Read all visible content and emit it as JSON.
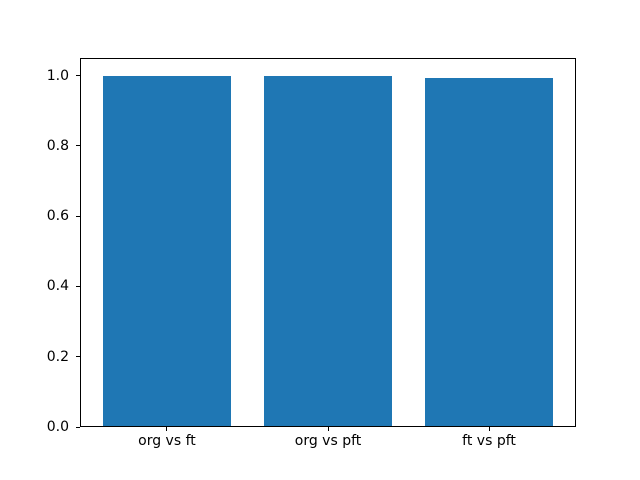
{
  "figure": {
    "background": "#ffffff",
    "bar_color": "#1f77b4",
    "axis_color": "#000000"
  },
  "chart_data": {
    "type": "bar",
    "categories": [
      "org vs ft",
      "org vs pft",
      "ft vs pft"
    ],
    "values": [
      0.999,
      0.999,
      0.994
    ],
    "title": "",
    "xlabel": "",
    "ylabel": "",
    "ylim": [
      0,
      1.05
    ],
    "yticks": [
      0.0,
      0.2,
      0.4,
      0.6,
      0.8,
      1.0
    ],
    "ytick_labels": [
      "0.0",
      "0.2",
      "0.4",
      "0.6",
      "0.8",
      "1.0"
    ],
    "bar_width_fraction": 0.8,
    "x_margin_fraction": 0.05,
    "grid": false,
    "legend_position": "none"
  }
}
